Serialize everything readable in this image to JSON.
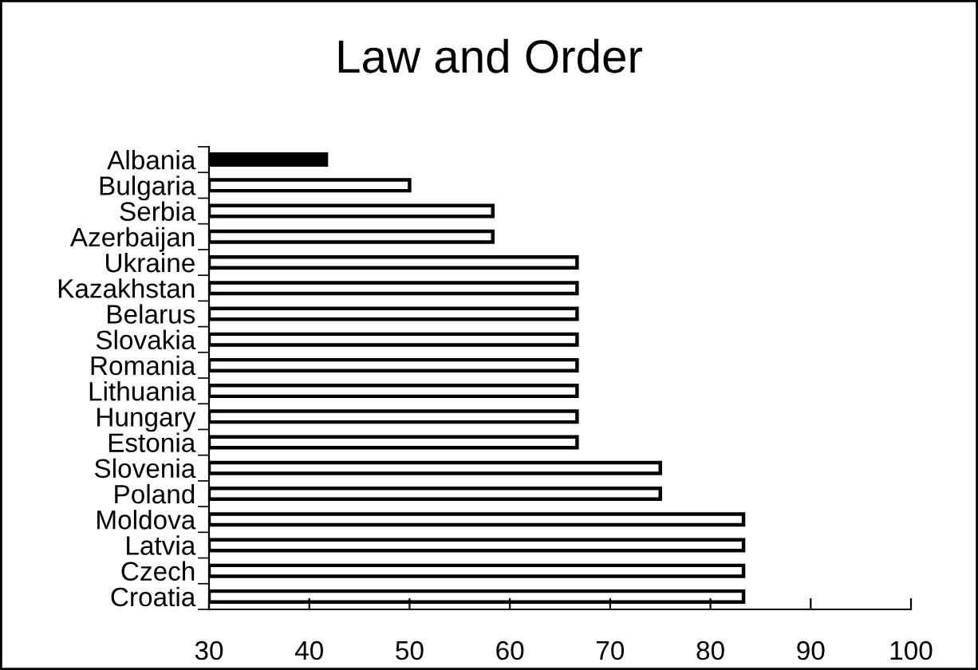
{
  "chart_data": {
    "type": "bar",
    "orientation": "horizontal",
    "title": "Law and Order",
    "categories": [
      "Albania",
      "Bulgaria",
      "Serbia",
      "Azerbaijan",
      "Ukraine",
      "Kazakhstan",
      "Belarus",
      "Slovakia",
      "Romania",
      "Lithuania",
      "Hungary",
      "Estonia",
      "Slovenia",
      "Poland",
      "Moldova",
      "Latvia",
      "Czech",
      "Croatia"
    ],
    "values": [
      41.7,
      50,
      58.3,
      58.3,
      66.7,
      66.7,
      66.7,
      66.7,
      66.7,
      66.7,
      66.7,
      66.7,
      75,
      75,
      83.3,
      83.3,
      83.3,
      83.3
    ],
    "colors": [
      "#000000",
      "#ffffff",
      "#ffffff",
      "#ffffff",
      "#ffffff",
      "#ffffff",
      "#ffffff",
      "#ffffff",
      "#ffffff",
      "#ffffff",
      "#ffffff",
      "#ffffff",
      "#ffffff",
      "#ffffff",
      "#ffffff",
      "#ffffff",
      "#ffffff",
      "#ffffff"
    ],
    "xlim": [
      30,
      100
    ],
    "xticks": [
      30,
      40,
      50,
      60,
      70,
      80,
      90,
      100
    ],
    "grid": false,
    "legend": false
  }
}
